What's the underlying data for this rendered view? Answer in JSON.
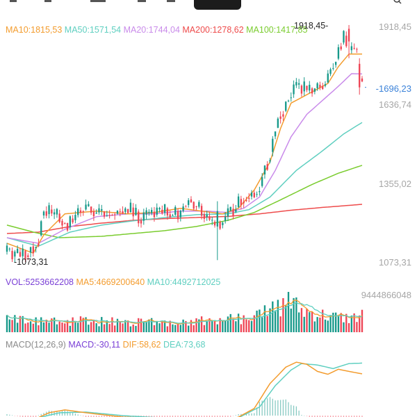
{
  "colors": {
    "ma10": "#F39C2E",
    "ma50": "#5FCFC0",
    "ma20": "#C98BEA",
    "ma200": "#EE4B4B",
    "ma100": "#7ACC2E",
    "up": "#17998A",
    "down": "#EE4455",
    "axis_text": "#A6A6A6",
    "current": "#3B82D9",
    "vol": "#7A3FD6",
    "macd_label": "#8A8A8A",
    "macd": "#7A3FD6",
    "dif": "#F39C2E",
    "dea": "#5FCFC0",
    "text_dark": "#222222"
  },
  "main_legend": [
    {
      "key": "ma10",
      "text": "MA10:1815,53"
    },
    {
      "key": "ma50",
      "text": "MA50:1571,54"
    },
    {
      "key": "ma20",
      "text": "MA20:1744,04"
    },
    {
      "key": "ma200",
      "text": "MA200:1278,62"
    },
    {
      "key": "ma100",
      "text": "MA100:1417,85"
    }
  ],
  "price_axis": {
    "ticks": [
      "1918,45",
      "1636,74",
      "1355,02",
      "1073,31"
    ],
    "current": "-1696,23",
    "max_marker": "1918,45-",
    "min_marker": "-1073,31"
  },
  "volume_legend": [
    {
      "key": "vol",
      "text": "VOL:5253662208"
    },
    {
      "key": "ma10",
      "text": "MA5:4669200640"
    },
    {
      "key": "ma50",
      "text": "MA10:4492712025"
    }
  ],
  "volume_axis": {
    "max": "9444866048"
  },
  "macd_legend": [
    {
      "key": "macd_label",
      "text": "MACD(12,26,9)"
    },
    {
      "key": "macd",
      "text": "MACD:-30,11"
    },
    {
      "key": "dif",
      "text": "DIF:58,62"
    },
    {
      "key": "dea",
      "text": "DEA:73,68"
    }
  ],
  "chart_data": {
    "type": "candlestick",
    "price_range": [
      1073.31,
      1918.45
    ],
    "current_price": 1696.23,
    "anchors": {
      "open": [
        [
          0,
          1110
        ],
        [
          6,
          1095
        ],
        [
          12,
          1150
        ],
        [
          14,
          1260
        ],
        [
          19,
          1235
        ],
        [
          24,
          1210
        ],
        [
          30,
          1270
        ],
        [
          38,
          1240
        ],
        [
          46,
          1260
        ],
        [
          52,
          1230
        ],
        [
          58,
          1255
        ],
        [
          66,
          1240
        ],
        [
          70,
          1300
        ],
        [
          76,
          1240
        ],
        [
          80,
          1200
        ],
        [
          84,
          1235
        ],
        [
          90,
          1300
        ],
        [
          96,
          1330
        ],
        [
          100,
          1460
        ],
        [
          104,
          1600
        ],
        [
          110,
          1700
        ],
        [
          116,
          1680
        ],
        [
          122,
          1720
        ],
        [
          126,
          1810
        ],
        [
          128,
          1880
        ],
        [
          131,
          1830
        ],
        [
          133,
          1830
        ],
        [
          135,
          1700
        ]
      ],
      "ma10": [
        [
          0,
          1140
        ],
        [
          10,
          1105
        ],
        [
          14,
          1170
        ],
        [
          22,
          1245
        ],
        [
          34,
          1255
        ],
        [
          46,
          1245
        ],
        [
          56,
          1250
        ],
        [
          66,
          1265
        ],
        [
          74,
          1255
        ],
        [
          82,
          1245
        ],
        [
          88,
          1265
        ],
        [
          94,
          1330
        ],
        [
          100,
          1430
        ],
        [
          104,
          1550
        ],
        [
          108,
          1640
        ],
        [
          116,
          1680
        ],
        [
          122,
          1710
        ],
        [
          126,
          1770
        ],
        [
          130,
          1815
        ],
        [
          135,
          1815
        ]
      ],
      "ma20": [
        [
          0,
          1160
        ],
        [
          12,
          1140
        ],
        [
          22,
          1190
        ],
        [
          34,
          1235
        ],
        [
          46,
          1245
        ],
        [
          56,
          1245
        ],
        [
          66,
          1255
        ],
        [
          76,
          1255
        ],
        [
          84,
          1250
        ],
        [
          90,
          1265
        ],
        [
          96,
          1305
        ],
        [
          102,
          1400
        ],
        [
          108,
          1520
        ],
        [
          114,
          1600
        ],
        [
          120,
          1650
        ],
        [
          126,
          1700
        ],
        [
          131,
          1745
        ],
        [
          135,
          1744
        ]
      ],
      "ma50": [
        [
          0,
          1160
        ],
        [
          12,
          1130
        ],
        [
          24,
          1180
        ],
        [
          36,
          1205
        ],
        [
          48,
          1220
        ],
        [
          60,
          1232
        ],
        [
          72,
          1242
        ],
        [
          84,
          1245
        ],
        [
          92,
          1260
        ],
        [
          100,
          1305
        ],
        [
          110,
          1400
        ],
        [
          120,
          1470
        ],
        [
          128,
          1530
        ],
        [
          135,
          1571
        ]
      ],
      "ma100": [
        [
          0,
          1205
        ],
        [
          10,
          1180
        ],
        [
          20,
          1160
        ],
        [
          36,
          1165
        ],
        [
          48,
          1175
        ],
        [
          60,
          1185
        ],
        [
          72,
          1200
        ],
        [
          84,
          1222
        ],
        [
          94,
          1250
        ],
        [
          104,
          1295
        ],
        [
          116,
          1350
        ],
        [
          126,
          1390
        ],
        [
          135,
          1418
        ]
      ],
      "ma200": [
        [
          0,
          1175
        ],
        [
          12,
          1180
        ],
        [
          24,
          1200
        ],
        [
          36,
          1212
        ],
        [
          48,
          1222
        ],
        [
          60,
          1228
        ],
        [
          72,
          1232
        ],
        [
          84,
          1236
        ],
        [
          96,
          1245
        ],
        [
          108,
          1258
        ],
        [
          120,
          1268
        ],
        [
          135,
          1279
        ]
      ]
    },
    "special_candles": [
      {
        "i": 80,
        "open": 1200,
        "close": 1255,
        "high": 1290,
        "low": 1080
      },
      {
        "i": 130,
        "open": 1905,
        "close": 1860,
        "high": 1918.45,
        "low": 1800
      },
      {
        "i": 134,
        "open": 1780,
        "close": 1696.23,
        "high": 1800,
        "low": 1670
      }
    ],
    "min_index": 3,
    "max_index": 130,
    "volume": {
      "max": 9444866048,
      "last": 5253662208,
      "ma5": 4669200640,
      "ma10": 4492712025,
      "profile": [
        [
          0,
          0.3
        ],
        [
          20,
          0.28
        ],
        [
          40,
          0.26
        ],
        [
          60,
          0.26
        ],
        [
          75,
          0.28
        ],
        [
          85,
          0.32
        ],
        [
          95,
          0.4
        ],
        [
          100,
          0.55
        ],
        [
          103,
          0.6
        ],
        [
          107,
          0.75
        ],
        [
          112,
          0.55
        ],
        [
          118,
          0.45
        ],
        [
          124,
          0.38
        ],
        [
          130,
          0.35
        ],
        [
          135,
          0.4
        ]
      ]
    },
    "macd": {
      "macd": -30.11,
      "dif": 58.62,
      "dea": 73.68,
      "dif_anchors": [
        [
          0,
          -5
        ],
        [
          10,
          -6
        ],
        [
          16,
          4
        ],
        [
          22,
          8
        ],
        [
          30,
          4
        ],
        [
          44,
          -2
        ],
        [
          58,
          -4
        ],
        [
          70,
          -4
        ],
        [
          80,
          -10
        ],
        [
          88,
          -2
        ],
        [
          94,
          10
        ],
        [
          100,
          45
        ],
        [
          106,
          68
        ],
        [
          110,
          75
        ],
        [
          114,
          72
        ],
        [
          118,
          62
        ],
        [
          122,
          58
        ],
        [
          126,
          65
        ],
        [
          130,
          62
        ],
        [
          135,
          58.6
        ]
      ],
      "dea_anchors": [
        [
          0,
          -6
        ],
        [
          12,
          -3
        ],
        [
          20,
          4
        ],
        [
          30,
          5
        ],
        [
          44,
          0
        ],
        [
          58,
          -3
        ],
        [
          70,
          -3
        ],
        [
          80,
          -6
        ],
        [
          88,
          -3
        ],
        [
          96,
          12
        ],
        [
          102,
          42
        ],
        [
          108,
          64
        ],
        [
          112,
          73
        ],
        [
          118,
          71
        ],
        [
          124,
          66
        ],
        [
          130,
          73
        ],
        [
          135,
          73.7
        ]
      ]
    }
  }
}
